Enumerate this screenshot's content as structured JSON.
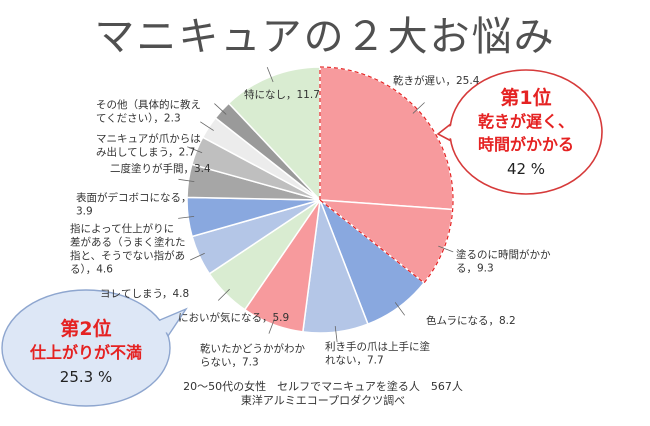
{
  "title": "マニキュアの２大お悩み",
  "colors": {
    "pink": "#f79a9d",
    "blue": "#89a8df",
    "lightblue": "#b4c6e7",
    "gray": "#a6a6a6",
    "lightgray": "#d6d6d6",
    "green": "#d9ecd1",
    "accent_red": "#e52222"
  },
  "chart_data": {
    "type": "pie",
    "unit": "%",
    "slices": [
      {
        "label": "乾きが遅い",
        "value": 25.4,
        "color": "#f79a9d"
      },
      {
        "label": "塗るのに時間がかかる",
        "value": 9.3,
        "color": "#f79a9d"
      },
      {
        "label": "色ムラになる",
        "value": 8.2,
        "color": "#89a8df"
      },
      {
        "label": "利き手の爪は上手に塗れない",
        "value": 7.7,
        "color": "#b4c6e7"
      },
      {
        "label": "乾いたかどうかがわからない",
        "value": 7.3,
        "color": "#f79a9d"
      },
      {
        "label": "においが気になる",
        "value": 5.9,
        "color": "#d9ecd1"
      },
      {
        "label": "ヨレてしまう",
        "value": 4.8,
        "color": "#b4c6e7"
      },
      {
        "label": "指によって仕上がりに差がある（うまく塗れた指と、そうでない指がある）",
        "value": 4.6,
        "color": "#89a8df"
      },
      {
        "label": "表面がデコボコになる",
        "value": 3.9,
        "color": "#a6a6a6"
      },
      {
        "label": "二度塗りが手間",
        "value": 3.4,
        "color": "#bfbfbf"
      },
      {
        "label": "マニキュアが爪からはみ出してしまう",
        "value": 2.7,
        "color": "#ececec"
      },
      {
        "label": "その他（具体的に教えてください）",
        "value": 2.3,
        "color": "#9a9a9a"
      },
      {
        "label": "特になし",
        "value": 11.7,
        "color": "#d9ecd1"
      }
    ],
    "labels_text": [
      [
        "乾きが遅い，25.4"
      ],
      [
        "塗るのに時間がかか",
        "る，9.3"
      ],
      [
        "色ムラになる，8.2"
      ],
      [
        "利き手の爪は上手に塗",
        "れない，7.7"
      ],
      [
        "乾いたかどうかがわか",
        "らない，7.3"
      ],
      [
        "においが気になる，5.9"
      ],
      [
        "ヨレてしまう，4.8"
      ],
      [
        "指によって仕上がりに",
        "差がある（うまく塗れた",
        "指と、そうでない指があ",
        "る），4.6"
      ],
      [
        "表面がデコボコになる，",
        "3.9"
      ],
      [
        "二度塗りが手間，3.4"
      ],
      [
        "マニキュアが爪からは",
        "み出してしまう，2.7"
      ],
      [
        "その他（具体的に教え",
        "てください），2.3"
      ],
      [
        "特になし，11.7"
      ]
    ]
  },
  "callouts": {
    "first": {
      "rank": "第1位",
      "line1": "乾きが遅く、",
      "line2": "時間がかかる",
      "percent": "42 %"
    },
    "second": {
      "rank": "第2位",
      "line1": "仕上がりが不満",
      "percent": "25.3 %"
    }
  },
  "source": {
    "line1": "20～50代の女性　セルフでマニキュアを塗る人　567人",
    "line2": "東洋アルミエコープロダクツ調べ"
  }
}
